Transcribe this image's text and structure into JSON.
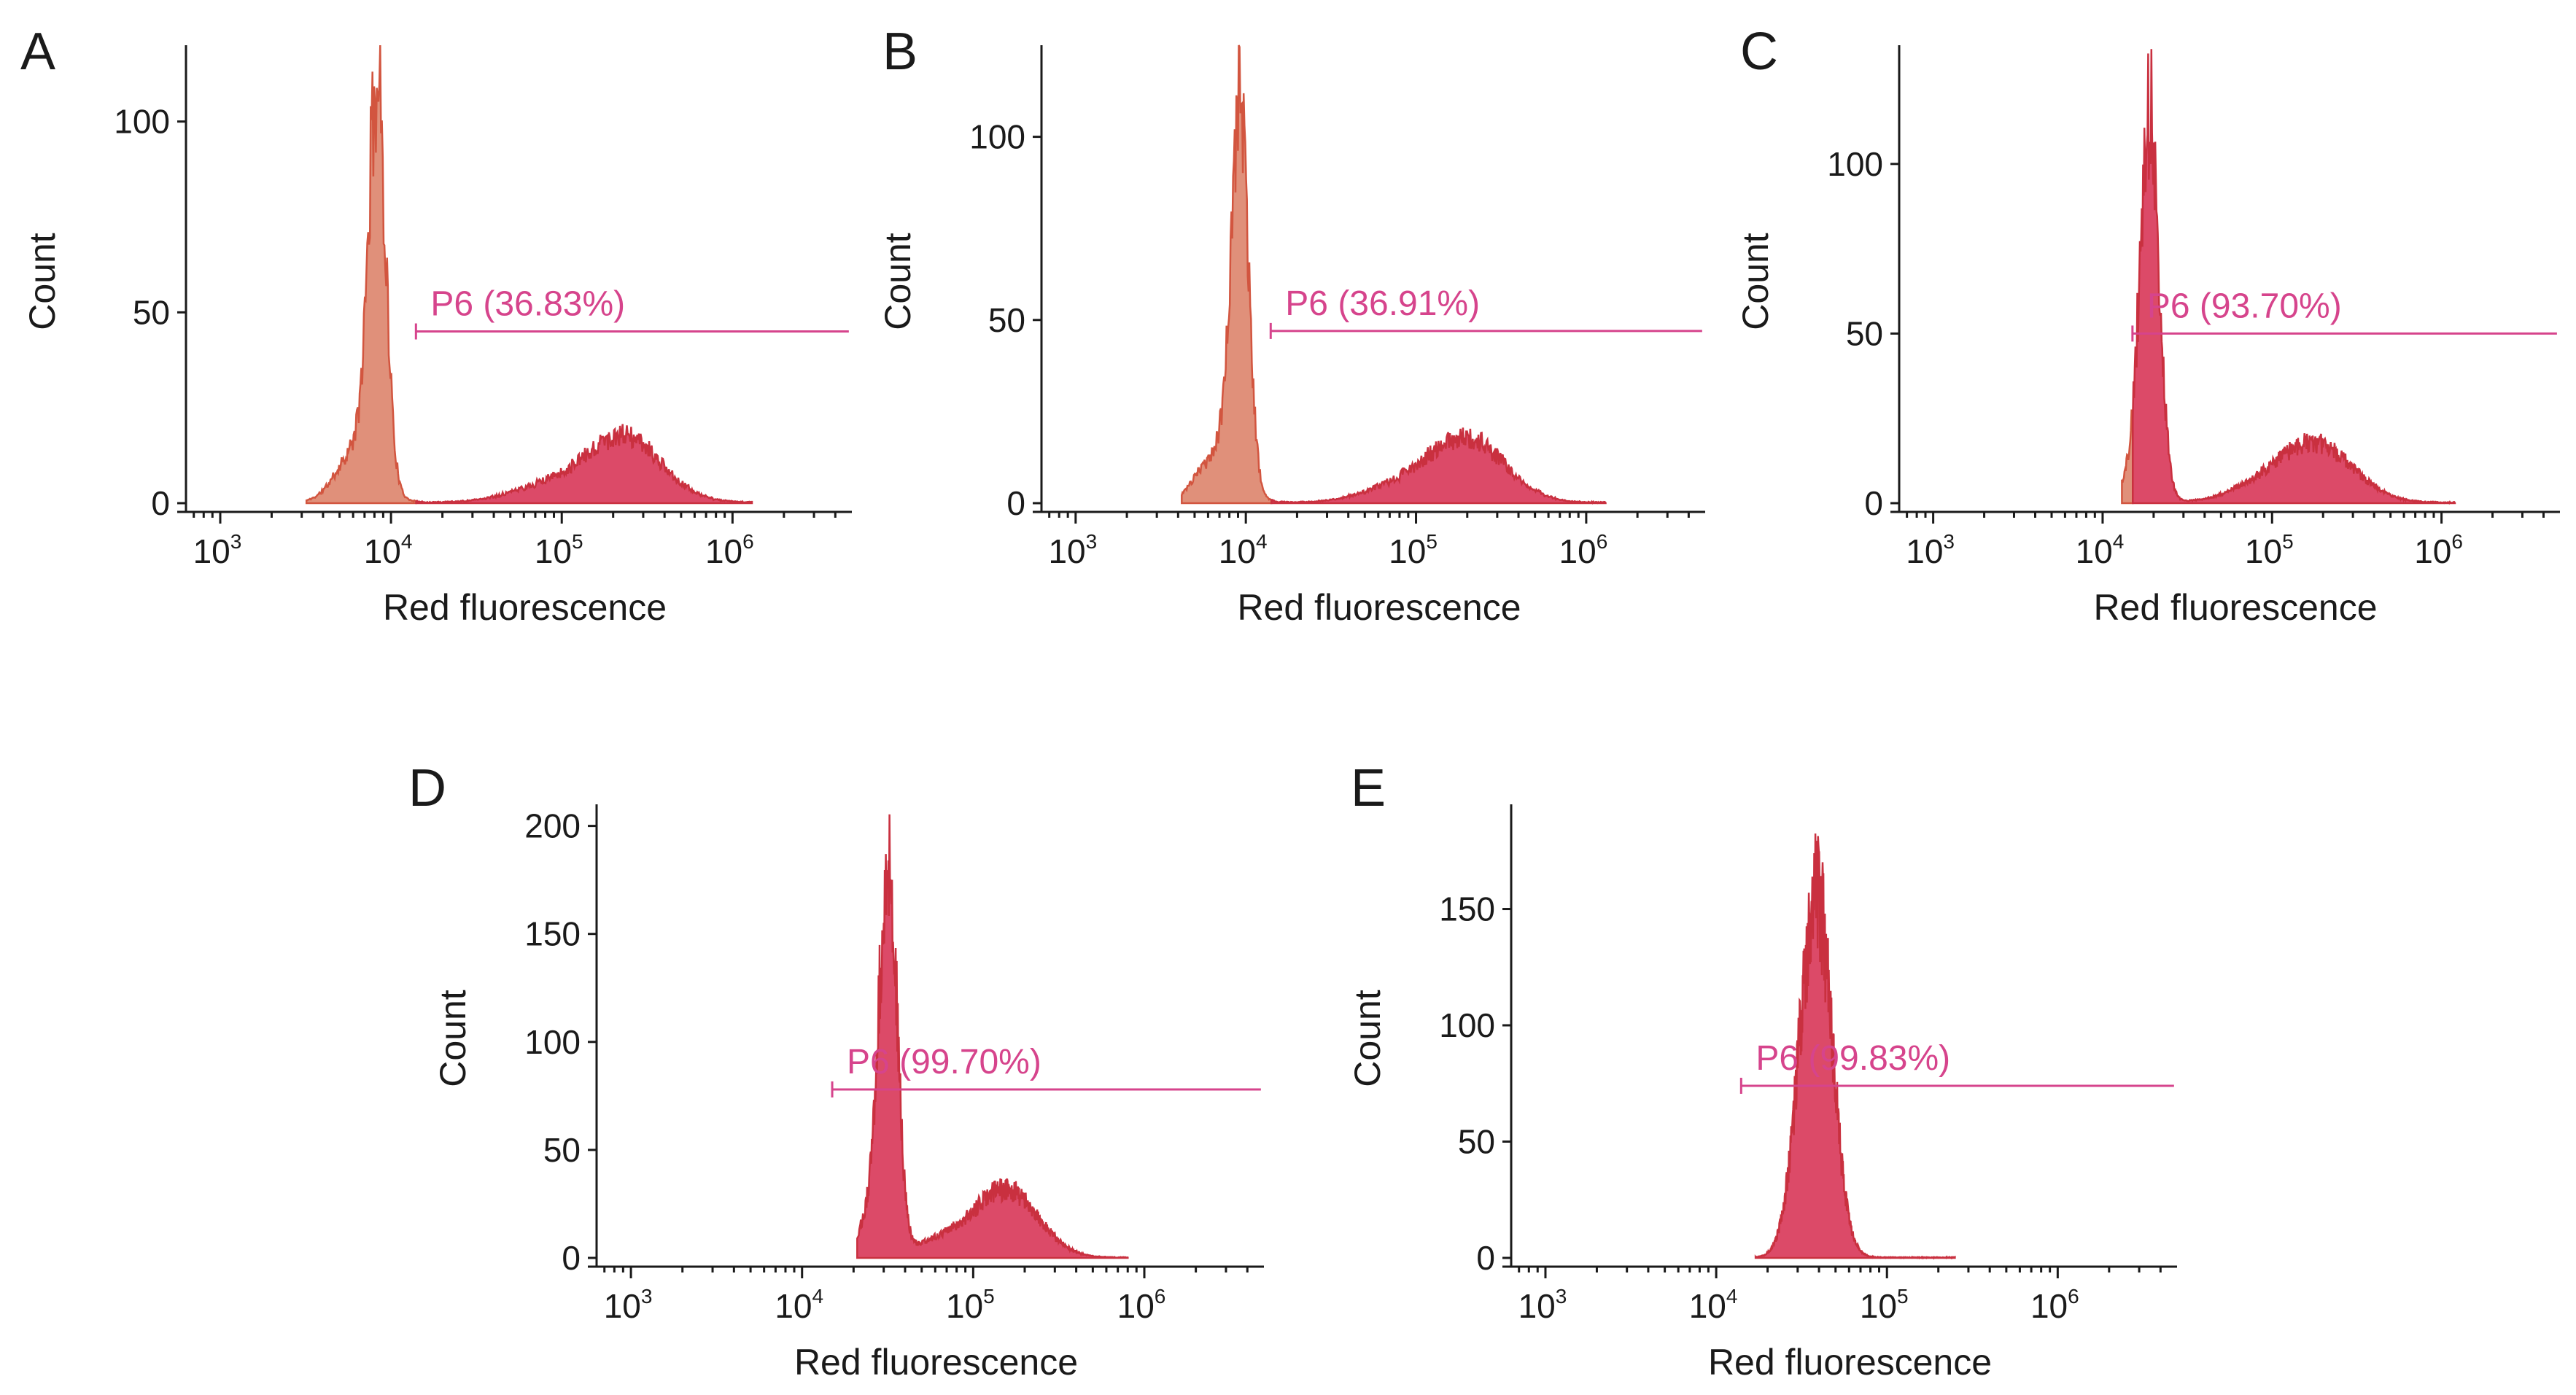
{
  "figure": {
    "colors": {
      "neg_fill": "#e0907a",
      "neg_stroke": "#d2553f",
      "pos_fill": "#dc4a68",
      "pos_stroke": "#c9303f",
      "gate": "#d6448c",
      "axis": "#1a1a1a"
    }
  },
  "chart_data": [
    {
      "panel": "A",
      "type": "histogram",
      "xlabel": "Red fluorescence",
      "ylabel": "Count",
      "xscale": "log",
      "xlim": [
        630,
        5000000
      ],
      "ylim": [
        0,
        120
      ],
      "yticks": [
        0,
        50,
        100
      ],
      "xticks": [
        {
          "value": 1000,
          "base": "10",
          "exp": "3"
        },
        {
          "value": 10000,
          "base": "10",
          "exp": "4"
        },
        {
          "value": 100000,
          "base": "10",
          "exp": "5"
        },
        {
          "value": 1000000,
          "base": "10",
          "exp": "6"
        }
      ],
      "gate": {
        "label": "P6 (36.83%)",
        "start": 14000,
        "end": 4800000,
        "y": 45
      },
      "split": 14000,
      "peaks": [
        {
          "center": 8300,
          "sigma": 0.05,
          "height": 100
        },
        {
          "center": 6500,
          "sigma": 0.12,
          "height": 15
        },
        {
          "center": 230000,
          "sigma": 0.22,
          "height": 17
        },
        {
          "center": 80000,
          "sigma": 0.22,
          "height": 4
        }
      ],
      "range": [
        3200,
        1300000
      ],
      "seed": 11
    },
    {
      "panel": "B",
      "type": "histogram",
      "xlabel": "Red fluorescence",
      "ylabel": "Count",
      "xscale": "log",
      "xlim": [
        630,
        5000000
      ],
      "ylim": [
        0,
        125
      ],
      "yticks": [
        0,
        50,
        100
      ],
      "xticks": [
        {
          "value": 1000,
          "base": "10",
          "exp": "3"
        },
        {
          "value": 10000,
          "base": "10",
          "exp": "4"
        },
        {
          "value": 100000,
          "base": "10",
          "exp": "5"
        },
        {
          "value": 1000000,
          "base": "10",
          "exp": "6"
        }
      ],
      "gate": {
        "label": "P6 (36.91%)",
        "start": 14000,
        "end": 4800000,
        "y": 47
      },
      "split": 14000,
      "peaks": [
        {
          "center": 9200,
          "sigma": 0.05,
          "height": 104
        },
        {
          "center": 7000,
          "sigma": 0.12,
          "height": 14
        },
        {
          "center": 200000,
          "sigma": 0.22,
          "height": 17
        },
        {
          "center": 80000,
          "sigma": 0.22,
          "height": 4
        }
      ],
      "range": [
        4200,
        1300000
      ],
      "seed": 23
    },
    {
      "panel": "C",
      "type": "histogram",
      "xlabel": "Red fluorescence",
      "ylabel": "Count",
      "xscale": "log",
      "xlim": [
        630,
        5000000
      ],
      "ylim": [
        0,
        135
      ],
      "yticks": [
        0,
        50,
        100
      ],
      "xticks": [
        {
          "value": 1000,
          "base": "10",
          "exp": "3"
        },
        {
          "value": 10000,
          "base": "10",
          "exp": "4"
        },
        {
          "value": 100000,
          "base": "10",
          "exp": "5"
        },
        {
          "value": 1000000,
          "base": "10",
          "exp": "6"
        }
      ],
      "gate": {
        "label": "P6 (93.70%)",
        "start": 15000,
        "end": 4800000,
        "y": 50
      },
      "split": 15000,
      "peaks": [
        {
          "center": 19000,
          "sigma": 0.055,
          "height": 110
        },
        {
          "center": 16000,
          "sigma": 0.1,
          "height": 8
        },
        {
          "center": 180000,
          "sigma": 0.22,
          "height": 17
        },
        {
          "center": 80000,
          "sigma": 0.2,
          "height": 3
        }
      ],
      "range": [
        13000,
        1200000
      ],
      "seed": 37
    },
    {
      "panel": "D",
      "type": "histogram",
      "xlabel": "Red fluorescence",
      "ylabel": "Count",
      "xscale": "log",
      "xlim": [
        630,
        5000000
      ],
      "ylim": [
        0,
        210
      ],
      "yticks": [
        0,
        50,
        100,
        150,
        200
      ],
      "xticks": [
        {
          "value": 1000,
          "base": "10",
          "exp": "3"
        },
        {
          "value": 10000,
          "base": "10",
          "exp": "4"
        },
        {
          "value": 100000,
          "base": "10",
          "exp": "5"
        },
        {
          "value": 1000000,
          "base": "10",
          "exp": "6"
        }
      ],
      "gate": {
        "label": "P6 (99.70%)",
        "start": 15000,
        "end": 4800000,
        "y": 78
      },
      "split": 15000,
      "peaks": [
        {
          "center": 32000,
          "sigma": 0.05,
          "height": 168
        },
        {
          "center": 27000,
          "sigma": 0.08,
          "height": 25
        },
        {
          "center": 160000,
          "sigma": 0.18,
          "height": 30
        },
        {
          "center": 70000,
          "sigma": 0.2,
          "height": 8
        }
      ],
      "range": [
        21000,
        800000
      ],
      "seed": 53
    },
    {
      "panel": "E",
      "type": "histogram",
      "xlabel": "Red fluorescence",
      "ylabel": "Count",
      "xscale": "log",
      "xlim": [
        630,
        5000000
      ],
      "ylim": [
        0,
        195
      ],
      "yticks": [
        0,
        50,
        100,
        150
      ],
      "xticks": [
        {
          "value": 1000,
          "base": "10",
          "exp": "3"
        },
        {
          "value": 10000,
          "base": "10",
          "exp": "4"
        },
        {
          "value": 100000,
          "base": "10",
          "exp": "5"
        },
        {
          "value": 1000000,
          "base": "10",
          "exp": "6"
        }
      ],
      "gate": {
        "label": "P6 (99.83%)",
        "start": 14000,
        "end": 4800000,
        "y": 74
      },
      "split": 14000,
      "peaks": [
        {
          "center": 38000,
          "sigma": 0.095,
          "height": 150
        },
        {
          "center": 44000,
          "sigma": 0.05,
          "height": 10
        }
      ],
      "range": [
        17000,
        250000
      ],
      "seed": 71
    }
  ]
}
